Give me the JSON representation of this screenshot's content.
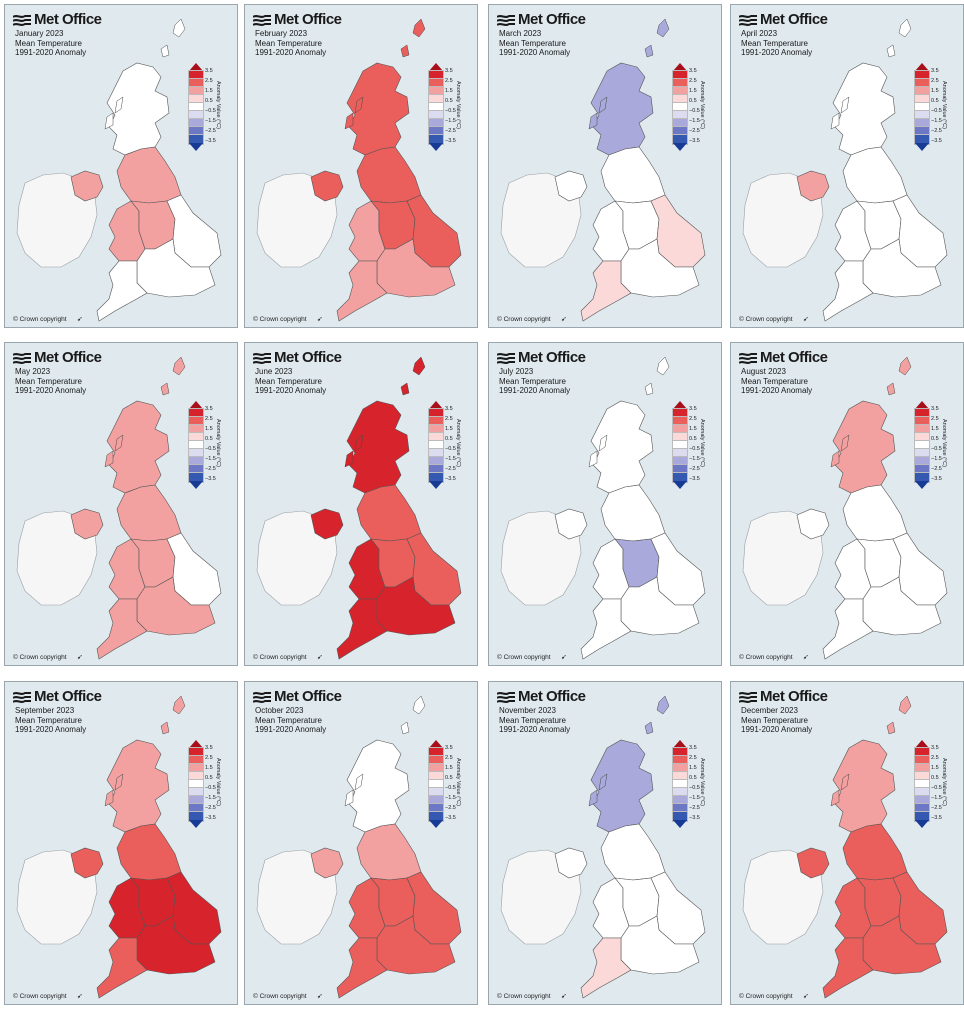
{
  "brand": "Met Office",
  "subtitle_line_1": "Mean Temperature",
  "subtitle_line_2": "1991-2020 Anomaly",
  "copyright": "© Crown copyright",
  "north_arrow": "➹",
  "legend": {
    "axis_label": "Anomaly Value (°C)",
    "labels": [
      "3.5",
      "2.5",
      "1.5",
      "0.5",
      "−0.5",
      "−1.5",
      "−2.5",
      "−3.5"
    ],
    "colors": [
      "#a80f1a",
      "#d7232b",
      "#ea5e5b",
      "#f3a1a0",
      "#fbd9d8",
      "#ffffff",
      "#dcdcf1",
      "#a9a9dc",
      "#6c78c6",
      "#3558b0",
      "#173b94"
    ]
  },
  "colors": {
    "sea": "#dfe9ee",
    "ireland": "#f6f6f6",
    "land_neutral": "#ffffff",
    "border": "#555555",
    "coast": "#4a4a4a"
  },
  "panels": [
    {
      "month": "January 2023",
      "anomaly": {
        "scotland": 0.0,
        "ni": 1.0,
        "north_england": 1.0,
        "wales": 1.0,
        "midlands": 1.0,
        "east_england": 0.0,
        "south_england": 0.0,
        "south_west": 0.0
      }
    },
    {
      "month": "February 2023",
      "anomaly": {
        "scotland": 1.5,
        "ni": 1.5,
        "north_england": 1.5,
        "wales": 1.0,
        "midlands": 1.5,
        "east_england": 1.5,
        "south_england": 1.0,
        "south_west": 1.0
      }
    },
    {
      "month": "March 2023",
      "anomaly": {
        "scotland": -1.0,
        "ni": 0.0,
        "north_england": 0.0,
        "wales": 0.0,
        "midlands": 0.0,
        "east_england": 0.5,
        "south_england": 0.0,
        "south_west": 0.5
      }
    },
    {
      "month": "April 2023",
      "anomaly": {
        "scotland": 0.0,
        "ni": 1.0,
        "north_england": 0.0,
        "wales": 0.0,
        "midlands": 0.0,
        "east_england": 0.0,
        "south_england": 0.0,
        "south_west": 0.0
      }
    },
    {
      "month": "May 2023",
      "anomaly": {
        "scotland": 1.0,
        "ni": 1.0,
        "north_england": 1.0,
        "wales": 1.0,
        "midlands": 1.0,
        "east_england": 0.0,
        "south_england": 1.0,
        "south_west": 1.0
      }
    },
    {
      "month": "June 2023",
      "anomaly": {
        "scotland": 3.0,
        "ni": 3.0,
        "north_england": 2.0,
        "wales": 3.0,
        "midlands": 2.0,
        "east_england": 2.0,
        "south_england": 3.0,
        "south_west": 3.0
      }
    },
    {
      "month": "July 2023",
      "anomaly": {
        "scotland": 0.0,
        "ni": 0.0,
        "north_england": 0.0,
        "wales": 0.0,
        "midlands": -1.0,
        "east_england": 0.0,
        "south_england": 0.0,
        "south_west": 0.0
      }
    },
    {
      "month": "August 2023",
      "anomaly": {
        "scotland": 1.0,
        "ni": 0.0,
        "north_england": 0.0,
        "wales": 0.0,
        "midlands": 0.0,
        "east_england": 0.0,
        "south_england": 0.0,
        "south_west": 0.0
      }
    },
    {
      "month": "September 2023",
      "anomaly": {
        "scotland": 1.0,
        "ni": 1.5,
        "north_england": 2.0,
        "wales": 3.0,
        "midlands": 3.0,
        "east_england": 3.0,
        "south_england": 3.0,
        "south_west": 2.0
      }
    },
    {
      "month": "October 2023",
      "anomaly": {
        "scotland": 0.0,
        "ni": 1.0,
        "north_england": 1.0,
        "wales": 1.5,
        "midlands": 1.5,
        "east_england": 1.5,
        "south_england": 1.5,
        "south_west": 1.5
      }
    },
    {
      "month": "November 2023",
      "anomaly": {
        "scotland": -1.0,
        "ni": 0.0,
        "north_england": 0.0,
        "wales": 0.0,
        "midlands": 0.0,
        "east_england": 0.0,
        "south_england": 0.0,
        "south_west": 0.5
      }
    },
    {
      "month": "December 2023",
      "anomaly": {
        "scotland": 1.0,
        "ni": 1.5,
        "north_england": 1.5,
        "wales": 1.5,
        "midlands": 1.5,
        "east_england": 1.5,
        "south_england": 2.0,
        "south_west": 1.5
      }
    }
  ]
}
